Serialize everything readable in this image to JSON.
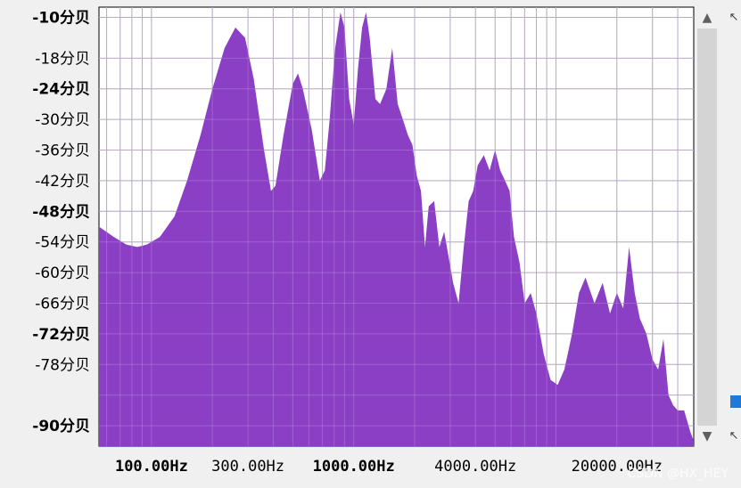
{
  "chart_data": {
    "type": "area",
    "xscale": "log",
    "xlim": [
      55,
      48000
    ],
    "ylim": [
      -94,
      -8
    ],
    "fill_color": "#8a3fc4",
    "grid": true,
    "y_ticks": [
      {
        "value": -10,
        "label": "-10分贝",
        "major": true
      },
      {
        "value": -18,
        "label": "-18分贝",
        "major": false
      },
      {
        "value": -24,
        "label": "-24分贝",
        "major": true
      },
      {
        "value": -30,
        "label": "-30分贝",
        "major": false
      },
      {
        "value": -36,
        "label": "-36分贝",
        "major": false
      },
      {
        "value": -42,
        "label": "-42分贝",
        "major": false
      },
      {
        "value": -48,
        "label": "-48分贝",
        "major": true
      },
      {
        "value": -54,
        "label": "-54分贝",
        "major": false
      },
      {
        "value": -60,
        "label": "-60分贝",
        "major": false
      },
      {
        "value": -66,
        "label": "-66分贝",
        "major": false
      },
      {
        "value": -72,
        "label": "-72分贝",
        "major": true
      },
      {
        "value": -78,
        "label": "-78分贝",
        "major": false
      },
      {
        "value": -90,
        "label": "-90分贝",
        "major": true
      }
    ],
    "x_ticks": [
      {
        "value": 100,
        "label": "100.00Hz",
        "major": true
      },
      {
        "value": 300,
        "label": "300.00Hz",
        "major": false
      },
      {
        "value": 1000,
        "label": "1000.00Hz",
        "major": true
      },
      {
        "value": 4000,
        "label": "4000.00Hz",
        "major": false
      },
      {
        "value": 20000,
        "label": "20000.00Hz",
        "major": false
      }
    ],
    "x_grid": [
      60,
      70,
      80,
      90,
      100,
      200,
      300,
      400,
      500,
      600,
      700,
      800,
      900,
      1000,
      2000,
      3000,
      4000,
      5000,
      6000,
      7000,
      8000,
      9000,
      10000,
      20000,
      30000,
      40000
    ],
    "y_grid": [
      -10,
      -18,
      -24,
      -30,
      -36,
      -42,
      -48,
      -54,
      -60,
      -66,
      -72,
      -78,
      -84,
      -90
    ],
    "series": [
      {
        "points": [
          [
            55,
            -51
          ],
          [
            65,
            -53
          ],
          [
            75,
            -54.5
          ],
          [
            85,
            -55
          ],
          [
            95,
            -54.5
          ],
          [
            110,
            -53
          ],
          [
            130,
            -49
          ],
          [
            150,
            -42
          ],
          [
            175,
            -33
          ],
          [
            200,
            -24
          ],
          [
            230,
            -16
          ],
          [
            260,
            -12
          ],
          [
            290,
            -14
          ],
          [
            320,
            -22
          ],
          [
            360,
            -36
          ],
          [
            390,
            -44
          ],
          [
            410,
            -43
          ],
          [
            450,
            -33
          ],
          [
            500,
            -23
          ],
          [
            530,
            -21
          ],
          [
            560,
            -24
          ],
          [
            620,
            -32
          ],
          [
            680,
            -42
          ],
          [
            720,
            -40
          ],
          [
            760,
            -30
          ],
          [
            810,
            -16
          ],
          [
            860,
            -9
          ],
          [
            900,
            -12
          ],
          [
            950,
            -26
          ],
          [
            1000,
            -31
          ],
          [
            1050,
            -20
          ],
          [
            1100,
            -12
          ],
          [
            1150,
            -9
          ],
          [
            1200,
            -14
          ],
          [
            1280,
            -26
          ],
          [
            1350,
            -27
          ],
          [
            1450,
            -24
          ],
          [
            1550,
            -16
          ],
          [
            1650,
            -27
          ],
          [
            1750,
            -30
          ],
          [
            1850,
            -33
          ],
          [
            1950,
            -35
          ],
          [
            2050,
            -41
          ],
          [
            2150,
            -44
          ],
          [
            2250,
            -55
          ],
          [
            2350,
            -47
          ],
          [
            2500,
            -46
          ],
          [
            2650,
            -55
          ],
          [
            2800,
            -52
          ],
          [
            2950,
            -57
          ],
          [
            3100,
            -62
          ],
          [
            3300,
            -66
          ],
          [
            3500,
            -55
          ],
          [
            3700,
            -46
          ],
          [
            3900,
            -44
          ],
          [
            4100,
            -39
          ],
          [
            4400,
            -37
          ],
          [
            4700,
            -40
          ],
          [
            5000,
            -36
          ],
          [
            5300,
            -40
          ],
          [
            5600,
            -42
          ],
          [
            5900,
            -44
          ],
          [
            6200,
            -53
          ],
          [
            6600,
            -58
          ],
          [
            7000,
            -66
          ],
          [
            7500,
            -64
          ],
          [
            8000,
            -68
          ],
          [
            8700,
            -76
          ],
          [
            9400,
            -81
          ],
          [
            10200,
            -82
          ],
          [
            11000,
            -79
          ],
          [
            12000,
            -72
          ],
          [
            13000,
            -64
          ],
          [
            14000,
            -61
          ],
          [
            15500,
            -66
          ],
          [
            17000,
            -62
          ],
          [
            18500,
            -68
          ],
          [
            20000,
            -64
          ],
          [
            21500,
            -67
          ],
          [
            23000,
            -55
          ],
          [
            24500,
            -64
          ],
          [
            26000,
            -69
          ],
          [
            28000,
            -72
          ],
          [
            30000,
            -77
          ],
          [
            32000,
            -79
          ],
          [
            34000,
            -73
          ],
          [
            36000,
            -84
          ],
          [
            38000,
            -86
          ],
          [
            40000,
            -87
          ],
          [
            43000,
            -87
          ],
          [
            46000,
            -91
          ],
          [
            48000,
            -93
          ]
        ]
      }
    ]
  },
  "ui": {
    "scroll_up_glyph": "▲",
    "scroll_down_glyph": "▼",
    "edge_icon_top": "↖",
    "edge_icon_bottom": "↖",
    "watermark": "CSDN @HX_HEY"
  }
}
